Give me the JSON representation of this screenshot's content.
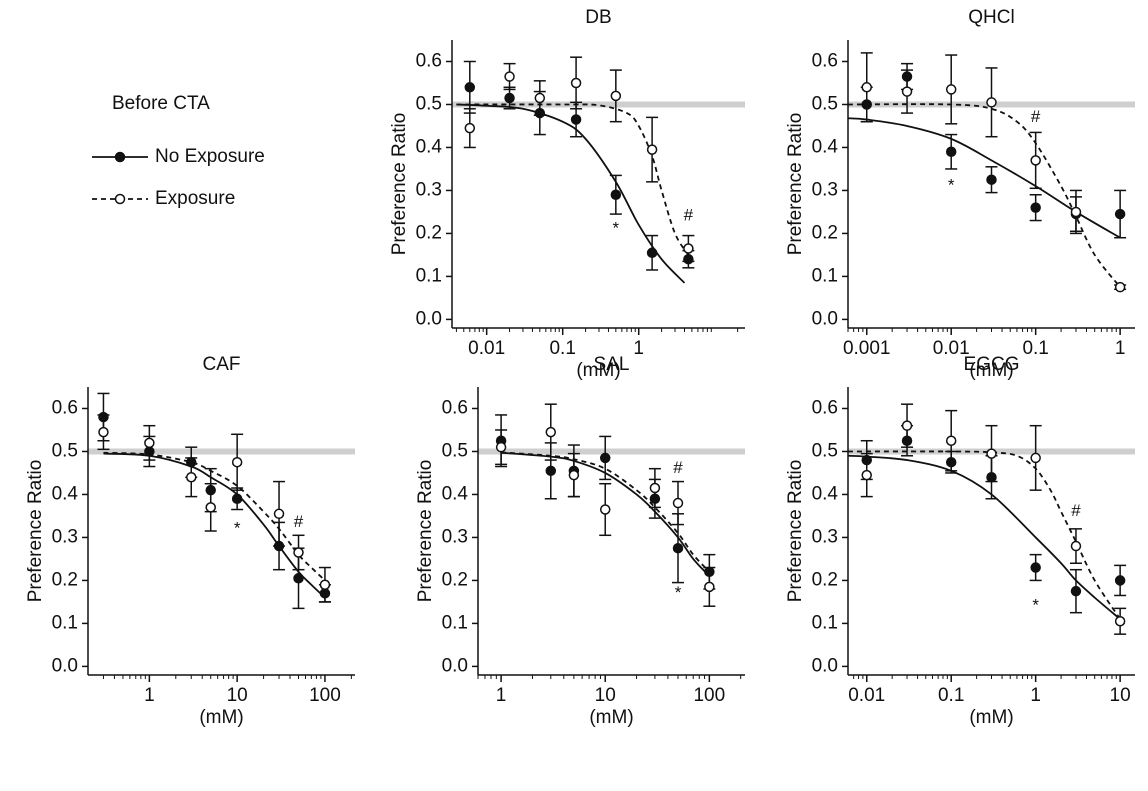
{
  "legend": {
    "title": "Before CTA"
  },
  "chart_data": [
    {
      "type": "line",
      "title": "DB",
      "x_label": "(mM)",
      "y_label": "Preference Ratio",
      "xscale": "log",
      "xlim": [
        0.0035,
        25
      ],
      "xticks": [
        0.01,
        0.1,
        1
      ],
      "ylim": [
        -0.02,
        0.65
      ],
      "yticks": [
        {
          "value": 0,
          "label": "0.0"
        },
        0.1,
        0.2,
        0.3,
        0.4,
        0.5,
        0.6
      ],
      "reference_line": 0.5,
      "series": [
        {
          "name": "No Exposure",
          "color": "#111111",
          "marker": "filled",
          "line": "solid",
          "x": [
            0.006,
            0.02,
            0.05,
            0.15,
            0.5,
            1.5,
            4.5
          ],
          "values": [
            0.54,
            0.515,
            0.48,
            0.465,
            0.29,
            0.155,
            0.14
          ],
          "errors": [
            0.06,
            0.025,
            0.05,
            0.04,
            0.045,
            0.04,
            0.02
          ],
          "fit": {
            "x": [
              0.004,
              0.01,
              0.03,
              0.1,
              0.2,
              0.5,
              1,
              2,
              4
            ],
            "values": [
              0.5,
              0.497,
              0.49,
              0.46,
              0.42,
              0.32,
              0.22,
              0.14,
              0.085
            ]
          }
        },
        {
          "name": "Exposure",
          "color": "#111111",
          "marker": "open",
          "line": "dashed",
          "x": [
            0.006,
            0.02,
            0.05,
            0.15,
            0.5,
            1.5,
            4.5
          ],
          "values": [
            0.445,
            0.565,
            0.515,
            0.55,
            0.52,
            0.395,
            0.165
          ],
          "errors": [
            0.045,
            0.03,
            0.04,
            0.06,
            0.06,
            0.075,
            0.03
          ],
          "fit": {
            "x": [
              0.004,
              0.1,
              0.3,
              0.7,
              1,
              1.5,
              2,
              3,
              4.5
            ],
            "values": [
              0.5,
              0.5,
              0.498,
              0.48,
              0.45,
              0.38,
              0.3,
              0.2,
              0.15
            ]
          }
        }
      ],
      "annotations": [
        {
          "text": "*",
          "x": 0.5,
          "y": 0.21
        },
        {
          "text": "#",
          "x": 4.5,
          "y": 0.24
        }
      ]
    },
    {
      "type": "line",
      "title": "QHCl",
      "x_label": "(mM)",
      "y_label": "Preference Ratio",
      "xscale": "log",
      "xlim": [
        0.0006,
        1.5
      ],
      "xticks": [
        0.001,
        0.01,
        0.1,
        1
      ],
      "ylim": [
        -0.02,
        0.65
      ],
      "yticks": [
        {
          "value": 0,
          "label": "0.0"
        },
        0.1,
        0.2,
        0.3,
        0.4,
        0.5,
        0.6
      ],
      "reference_line": 0.5,
      "series": [
        {
          "color": "#111111",
          "marker": "filled",
          "line": "solid",
          "x": [
            0.001,
            0.003,
            0.01,
            0.03,
            0.1,
            0.3,
            1
          ],
          "values": [
            0.5,
            0.565,
            0.39,
            0.325,
            0.26,
            0.245,
            0.245
          ],
          "errors": [
            0.04,
            0.03,
            0.04,
            0.03,
            0.03,
            0.04,
            0.055
          ],
          "fit": {
            "x": [
              0.0006,
              0.001,
              0.003,
              0.01,
              0.03,
              0.1,
              0.3,
              1
            ],
            "values": [
              0.468,
              0.465,
              0.45,
              0.42,
              0.37,
              0.31,
              0.25,
              0.19
            ]
          }
        },
        {
          "color": "#111111",
          "marker": "open",
          "line": "dashed",
          "x": [
            0.001,
            0.003,
            0.01,
            0.03,
            0.1,
            0.3,
            1
          ],
          "values": [
            0.54,
            0.53,
            0.535,
            0.505,
            0.37,
            0.25,
            0.075
          ],
          "errors": [
            0.08,
            0.05,
            0.08,
            0.08,
            0.065,
            0.05,
            0.005
          ],
          "fit": {
            "x": [
              0.0006,
              0.01,
              0.03,
              0.06,
              0.1,
              0.2,
              0.3,
              0.5,
              1
            ],
            "values": [
              0.5,
              0.5,
              0.49,
              0.46,
              0.41,
              0.31,
              0.24,
              0.15,
              0.075
            ]
          }
        }
      ],
      "annotations": [
        {
          "text": "*",
          "x": 0.01,
          "y": 0.31
        },
        {
          "text": "#",
          "x": 0.1,
          "y": 0.47
        }
      ]
    },
    {
      "type": "line",
      "title": "CAF",
      "x_label": "(mM)",
      "y_label": "Preference Ratio",
      "xscale": "log",
      "xlim": [
        0.2,
        220
      ],
      "xticks": [
        1,
        10,
        100
      ],
      "ylim": [
        -0.02,
        0.65
      ],
      "yticks": [
        {
          "value": 0,
          "label": "0.0"
        },
        0.1,
        0.2,
        0.3,
        0.4,
        0.5,
        0.6
      ],
      "reference_line": 0.5,
      "series": [
        {
          "color": "#111111",
          "marker": "filled",
          "line": "solid",
          "x": [
            0.3,
            1,
            3,
            5,
            10,
            30,
            50,
            100
          ],
          "values": [
            0.58,
            0.5,
            0.475,
            0.41,
            0.39,
            0.28,
            0.205,
            0.17
          ],
          "errors": [
            0.055,
            0.035,
            0.035,
            0.05,
            0.025,
            0.055,
            0.07,
            0.02
          ],
          "fit": {
            "x": [
              0.3,
              1,
              3,
              5,
              10,
              20,
              30,
              50,
              70,
              100
            ],
            "values": [
              0.495,
              0.49,
              0.465,
              0.44,
              0.4,
              0.33,
              0.28,
              0.22,
              0.19,
              0.16
            ]
          }
        },
        {
          "color": "#111111",
          "marker": "open",
          "line": "dashed",
          "x": [
            0.3,
            1,
            3,
            5,
            10,
            30,
            50,
            100
          ],
          "values": [
            0.545,
            0.52,
            0.44,
            0.37,
            0.475,
            0.355,
            0.265,
            0.19
          ],
          "errors": [
            0.04,
            0.04,
            0.045,
            0.055,
            0.065,
            0.075,
            0.04,
            0.04
          ],
          "fit": {
            "x": [
              0.3,
              1,
              3,
              5,
              10,
              20,
              30,
              50,
              70,
              100
            ],
            "values": [
              0.497,
              0.493,
              0.475,
              0.455,
              0.42,
              0.36,
              0.32,
              0.26,
              0.23,
              0.2
            ]
          }
        }
      ],
      "annotations": [
        {
          "text": "*",
          "x": 10,
          "y": 0.32
        },
        {
          "text": "#",
          "x": 50,
          "y": 0.335
        }
      ]
    },
    {
      "type": "line",
      "title": "SAL",
      "x_label": "(mM)",
      "y_label": "Preference Ratio",
      "xscale": "log",
      "xlim": [
        0.6,
        220
      ],
      "xticks": [
        1,
        10,
        100
      ],
      "ylim": [
        -0.02,
        0.65
      ],
      "yticks": [
        {
          "value": 0,
          "label": "0.0"
        },
        0.1,
        0.2,
        0.3,
        0.4,
        0.5,
        0.6
      ],
      "reference_line": 0.5,
      "series": [
        {
          "color": "#111111",
          "marker": "filled",
          "line": "solid",
          "x": [
            1,
            3,
            5,
            10,
            30,
            50,
            100
          ],
          "values": [
            0.525,
            0.455,
            0.455,
            0.485,
            0.39,
            0.275,
            0.22
          ],
          "errors": [
            0.06,
            0.065,
            0.06,
            0.05,
            0.045,
            0.08,
            0.04
          ],
          "fit": {
            "x": [
              1,
              3,
              5,
              10,
              20,
              30,
              50,
              70,
              100
            ],
            "values": [
              0.497,
              0.488,
              0.478,
              0.45,
              0.4,
              0.36,
              0.3,
              0.25,
              0.21
            ]
          }
        },
        {
          "color": "#111111",
          "marker": "open",
          "line": "dashed",
          "x": [
            1,
            3,
            5,
            10,
            30,
            50,
            100
          ],
          "values": [
            0.51,
            0.545,
            0.445,
            0.365,
            0.415,
            0.38,
            0.185
          ],
          "errors": [
            0.04,
            0.065,
            0.05,
            0.06,
            0.045,
            0.05,
            0.045
          ],
          "fit": {
            "x": [
              1,
              3,
              5,
              10,
              20,
              30,
              50,
              70,
              100
            ],
            "values": [
              0.498,
              0.49,
              0.482,
              0.46,
              0.41,
              0.37,
              0.31,
              0.26,
              0.22
            ]
          }
        }
      ],
      "annotations": [
        {
          "text": "*",
          "x": 50,
          "y": 0.17
        },
        {
          "text": "#",
          "x": 50,
          "y": 0.46
        }
      ]
    },
    {
      "type": "line",
      "title": "EGCG",
      "x_label": "(mM)",
      "y_label": "Preference Ratio",
      "xscale": "log",
      "xlim": [
        0.006,
        15
      ],
      "xticks": [
        0.01,
        0.1,
        1,
        10
      ],
      "ylim": [
        -0.02,
        0.65
      ],
      "yticks": [
        {
          "value": 0,
          "label": "0.0"
        },
        0.1,
        0.2,
        0.3,
        0.4,
        0.5,
        0.6
      ],
      "reference_line": 0.5,
      "series": [
        {
          "color": "#111111",
          "marker": "filled",
          "line": "solid",
          "x": [
            0.01,
            0.03,
            0.1,
            0.3,
            1,
            3,
            10
          ],
          "values": [
            0.48,
            0.525,
            0.475,
            0.44,
            0.23,
            0.175,
            0.2
          ],
          "errors": [
            0.045,
            0.035,
            0.025,
            0.05,
            0.03,
            0.05,
            0.035
          ],
          "fit": {
            "x": [
              0.006,
              0.01,
              0.03,
              0.1,
              0.3,
              1,
              2,
              3,
              5,
              10
            ],
            "values": [
              0.49,
              0.488,
              0.48,
              0.455,
              0.4,
              0.3,
              0.24,
              0.2,
              0.16,
              0.11
            ]
          }
        },
        {
          "color": "#111111",
          "marker": "open",
          "line": "dashed",
          "x": [
            0.01,
            0.03,
            0.1,
            0.3,
            1,
            3,
            10
          ],
          "values": [
            0.445,
            0.56,
            0.525,
            0.495,
            0.485,
            0.28,
            0.105
          ],
          "errors": [
            0.05,
            0.05,
            0.07,
            0.065,
            0.075,
            0.04,
            0.03
          ],
          "fit": {
            "x": [
              0.006,
              0.1,
              0.3,
              0.6,
              1,
              1.5,
              2,
              3,
              5,
              10
            ],
            "values": [
              0.5,
              0.5,
              0.498,
              0.49,
              0.46,
              0.41,
              0.36,
              0.29,
              0.2,
              0.11
            ]
          }
        }
      ],
      "annotations": [
        {
          "text": "*",
          "x": 1,
          "y": 0.14
        },
        {
          "text": "#",
          "x": 3,
          "y": 0.36
        }
      ]
    }
  ]
}
